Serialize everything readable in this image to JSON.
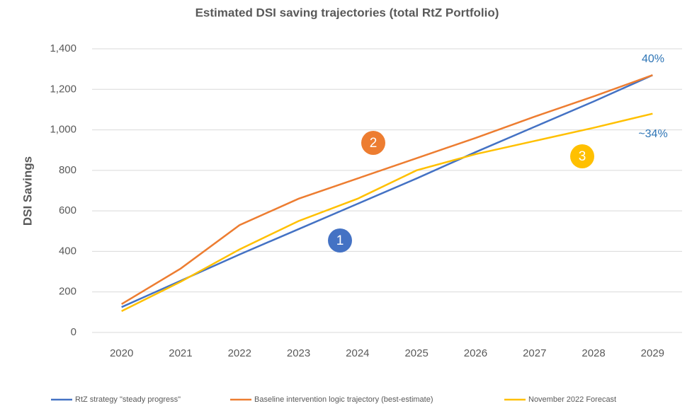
{
  "chart_data": {
    "type": "line",
    "title": "Estimated DSI saving trajectories (total RtZ Portfolio)",
    "y_label": "DSI Savings",
    "categories": [
      "2020",
      "2021",
      "2022",
      "2023",
      "2024",
      "2025",
      "2026",
      "2027",
      "2028",
      "2029"
    ],
    "series": [
      {
        "name": "RtZ strategy \"steady progress\"",
        "color": "#4472c4",
        "values": [
          125,
          255,
          385,
          510,
          635,
          760,
          890,
          1015,
          1140,
          1270
        ]
      },
      {
        "name": "Baseline intervention logic trajectory (best-estimate)",
        "color": "#ed7d31",
        "values": [
          140,
          315,
          530,
          660,
          760,
          860,
          960,
          1065,
          1165,
          1270
        ]
      },
      {
        "name": "November 2022 Forecast",
        "color": "#ffc000",
        "values": [
          105,
          250,
          410,
          550,
          660,
          800,
          880,
          945,
          1010,
          1080
        ]
      }
    ],
    "ylim": [
      0,
      1400
    ],
    "yticks": [
      0,
      200,
      400,
      600,
      800,
      {
        "value": 1000,
        "label": "1,000"
      },
      {
        "value": 1200,
        "label": "1,200"
      },
      {
        "value": 1400,
        "label": "1,400"
      }
    ],
    "grid": true,
    "legend": "bottom",
    "annotations": [
      {
        "text": "40%",
        "color": "#2e75b6"
      },
      {
        "text": "~34%",
        "color": "#2e75b6"
      },
      {
        "text": "1",
        "color": "#4472c4"
      },
      {
        "text": "2",
        "color": "#ed7d31"
      },
      {
        "text": "3",
        "color": "#ffc000"
      }
    ]
  }
}
